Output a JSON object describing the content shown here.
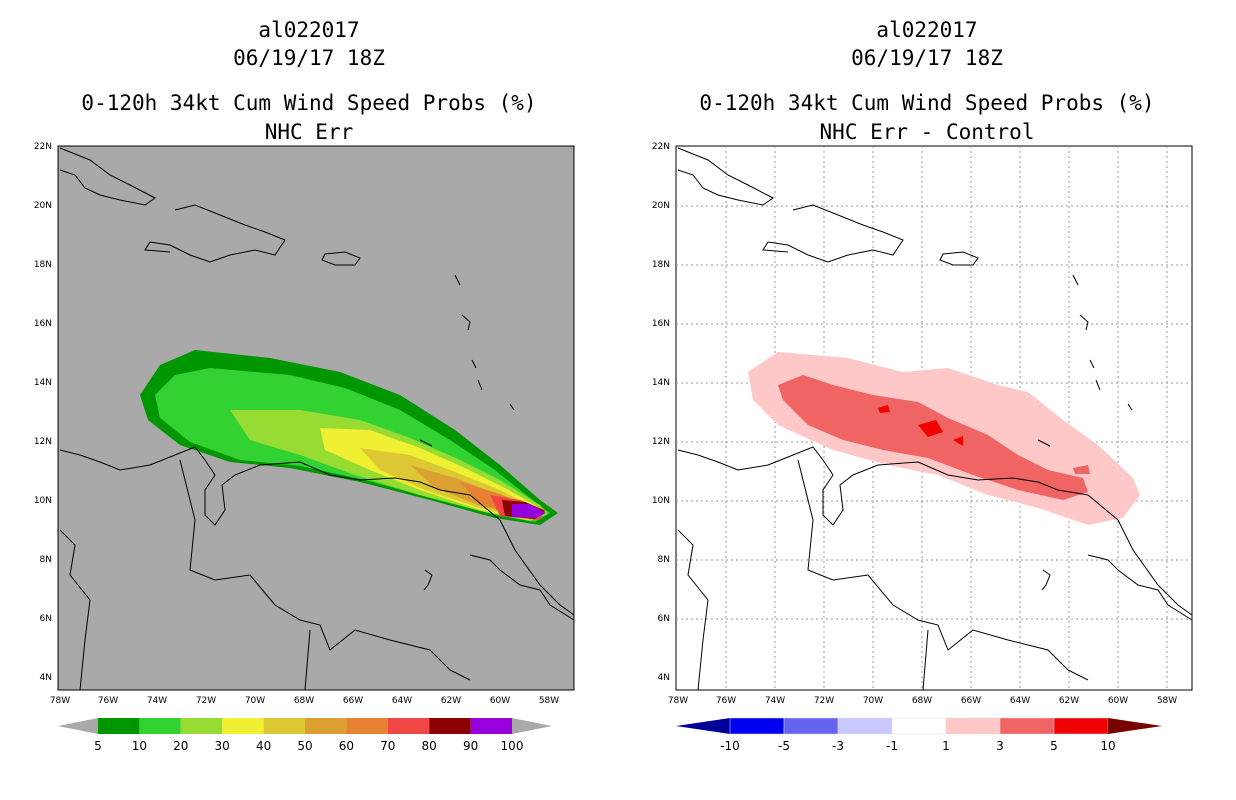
{
  "left": {
    "storm_id": "al022017",
    "datetime": "06/19/17 18Z",
    "title": "0-120h 34kt Cum Wind Speed Probs (%)",
    "subtitle": "NHC Err",
    "lat_labels": [
      "22N",
      "20N",
      "18N",
      "16N",
      "14N",
      "12N",
      "10N",
      "8N",
      "6N",
      "4N"
    ],
    "lon_labels": [
      "78W",
      "76W",
      "74W",
      "72W",
      "70W",
      "68W",
      "66W",
      "64W",
      "62W",
      "60W",
      "58W"
    ],
    "colorbar": {
      "colors": [
        "#009600",
        "#32d232",
        "#96dc32",
        "#f0f032",
        "#dcc832",
        "#dca032",
        "#e68232",
        "#f04646",
        "#8c0000",
        "#9600dc"
      ],
      "labels": [
        "5",
        "10",
        "20",
        "30",
        "40",
        "50",
        "60",
        "70",
        "80",
        "90",
        "100"
      ]
    },
    "colors": {
      "background": "#a9a9a9"
    }
  },
  "right": {
    "storm_id": "al022017",
    "datetime": "06/19/17 18Z",
    "title": "0-120h 34kt Cum Wind Speed Probs (%)",
    "subtitle": "NHC Err - Control",
    "lat_labels": [
      "22N",
      "20N",
      "18N",
      "16N",
      "14N",
      "12N",
      "10N",
      "8N",
      "6N",
      "4N"
    ],
    "lon_labels": [
      "78W",
      "76W",
      "74W",
      "72W",
      "70W",
      "68W",
      "66W",
      "64W",
      "62W",
      "60W",
      "58W"
    ],
    "colorbar": {
      "colors": [
        "#000096",
        "#0000f0",
        "#6464f0",
        "#c8c8ff",
        "#ffffff",
        "#ffc8c8",
        "#f06464",
        "#f00000",
        "#780000"
      ],
      "labels": [
        "-10",
        "-5",
        "-3",
        "-1",
        "1",
        "3",
        "5",
        "10"
      ]
    },
    "colors": {
      "background": "#ffffff"
    }
  }
}
